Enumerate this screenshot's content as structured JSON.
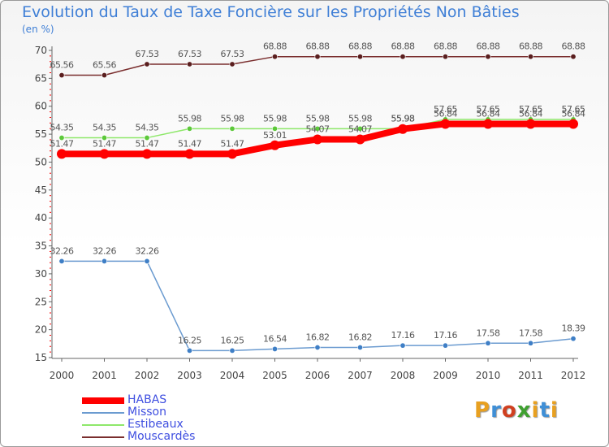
{
  "title": "Evolution du Taux de Taxe Foncière sur les Propriétés Non Bâties",
  "unit": "(en %)",
  "logo": {
    "text": "Proxiti",
    "letter_colors": [
      "#e8a020",
      "#3f8fd6",
      "#d04020",
      "#3fa030",
      "#e8a020",
      "#3f8fd6",
      "#e8a020"
    ]
  },
  "chart_data": {
    "type": "line",
    "title": "Evolution du Taux de Taxe Foncière sur les Propriétés Non Bâties",
    "ylabel": "(en %)",
    "xlabel": "",
    "ylim": [
      15,
      70
    ],
    "yticks": [
      15,
      20,
      25,
      30,
      35,
      40,
      45,
      50,
      55,
      60,
      65,
      70
    ],
    "categories": [
      "2000",
      "2001",
      "2002",
      "2003",
      "2004",
      "2005",
      "2006",
      "2007",
      "2008",
      "2009",
      "2010",
      "2011",
      "2012"
    ],
    "series": [
      {
        "name": "Mouscardès",
        "color": "#7a2e2e",
        "marker": "#5a1e1e",
        "width": 1.5,
        "radius": 3.2,
        "values": [
          65.56,
          65.56,
          67.53,
          67.53,
          67.53,
          68.88,
          68.88,
          68.88,
          68.88,
          68.88,
          68.88,
          68.88,
          68.88
        ],
        "labels": [
          "65.56",
          "65.56",
          "67.53",
          "67.53",
          "67.53",
          "68.88",
          "68.88",
          "68.88",
          "68.88",
          "68.88",
          "68.88",
          "68.88",
          "68.88"
        ]
      },
      {
        "name": "Estibeaux",
        "color": "#8ee86a",
        "marker": "#5cc83a",
        "width": 1.5,
        "radius": 3.2,
        "values": [
          54.35,
          54.35,
          54.35,
          55.98,
          55.98,
          55.98,
          55.98,
          55.98,
          55.98,
          57.65,
          57.65,
          57.65,
          57.65
        ],
        "labels": [
          "54.35",
          "54.35",
          "54.35",
          "55.98",
          "55.98",
          "55.98",
          "55.98",
          "55.98",
          "55.98",
          "57.65",
          "57.65",
          "57.65",
          "57.65"
        ]
      },
      {
        "name": "HABAS",
        "color": "#ff0000",
        "marker": "#ff0000",
        "width": 8,
        "radius": 6,
        "values": [
          51.47,
          51.47,
          51.47,
          51.47,
          51.47,
          53.01,
          54.07,
          54.07,
          55.93,
          56.84,
          56.84,
          56.84,
          56.84
        ],
        "labels": [
          "51.47",
          "51.47",
          "51.47",
          "51.47",
          "51.47",
          "53.01",
          "54.07",
          "54.07",
          "55.93",
          "56.84",
          "56.84",
          "56.84",
          "56.84"
        ]
      },
      {
        "name": "Misson",
        "color": "#6b9bd0",
        "marker": "#3f7fc6",
        "width": 1.5,
        "radius": 3.2,
        "values": [
          32.26,
          32.26,
          32.26,
          16.25,
          16.25,
          16.54,
          16.82,
          16.82,
          17.16,
          17.16,
          17.58,
          17.58,
          18.39
        ],
        "labels": [
          "32.26",
          "32.26",
          "32.26",
          "16.25",
          "16.25",
          "16.54",
          "16.82",
          "16.82",
          "17.16",
          "17.16",
          "17.58",
          "17.58",
          "18.39"
        ]
      }
    ],
    "legend": [
      "HABAS",
      "Misson",
      "Estibeaux",
      "Mouscardès"
    ],
    "legend_position": "bottom-left",
    "grid": false
  }
}
